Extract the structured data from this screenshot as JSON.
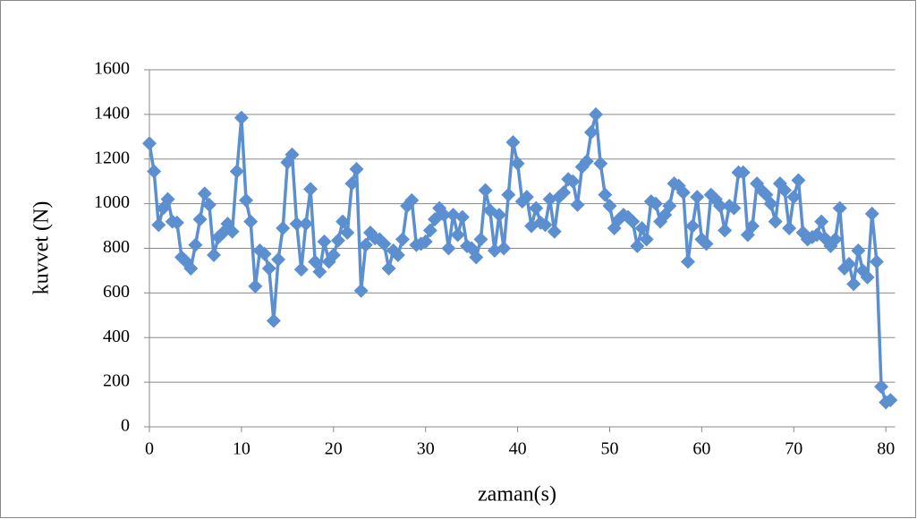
{
  "chart_data": {
    "type": "line",
    "xlabel": "zaman(s)",
    "ylabel": "kuvvet (N)",
    "xlim": [
      0,
      81
    ],
    "xticks": [
      0,
      10,
      20,
      30,
      40,
      50,
      60,
      70,
      80
    ],
    "ylim": [
      0,
      1600
    ],
    "yticks": [
      0,
      200,
      400,
      600,
      800,
      1000,
      1200,
      1400,
      1600
    ],
    "grid": true,
    "series": [
      {
        "color": "#5b8fd0",
        "x": [
          0,
          0.5,
          1,
          1.5,
          2,
          2.5,
          3,
          3.5,
          4,
          4.5,
          5,
          5.5,
          6,
          6.5,
          7,
          7.5,
          8,
          8.5,
          9,
          9.5,
          10,
          10.5,
          11,
          11.5,
          12,
          12.5,
          13,
          13.5,
          14,
          14.5,
          15,
          15.5,
          16,
          16.5,
          17,
          17.5,
          18,
          18.5,
          19,
          19.5,
          20,
          20.5,
          21,
          21.5,
          22,
          22.5,
          23,
          23.5,
          24,
          24.5,
          25,
          25.5,
          26,
          26.5,
          27,
          27.5,
          28,
          28.5,
          29,
          29.5,
          30,
          30.5,
          31,
          31.5,
          32,
          32.5,
          33,
          33.5,
          34,
          34.5,
          35,
          35.5,
          36,
          36.5,
          37,
          37.5,
          38,
          38.5,
          39,
          39.5,
          40,
          40.5,
          41,
          41.5,
          42,
          42.5,
          43,
          43.5,
          44,
          44.5,
          45,
          45.5,
          46,
          46.5,
          47,
          47.5,
          48,
          48.5,
          49,
          49.5,
          50,
          50.5,
          51,
          51.5,
          52,
          52.5,
          53,
          53.5,
          54,
          54.5,
          55,
          55.5,
          56,
          56.5,
          57,
          57.5,
          58,
          58.5,
          59,
          59.5,
          60,
          60.5,
          61,
          61.5,
          62,
          62.5,
          63,
          63.5,
          64,
          64.5,
          65,
          65.5,
          66,
          66.5,
          67,
          67.5,
          68,
          68.5,
          69,
          69.5,
          70,
          70.5,
          71,
          71.5,
          72,
          72.5,
          73,
          73.5,
          74,
          74.5,
          75,
          75.5,
          76,
          76.5,
          77,
          77.5,
          78,
          78.5,
          79,
          79.5,
          80,
          80.5
        ],
        "values": [
          1270,
          1145,
          905,
          980,
          1020,
          920,
          915,
          760,
          740,
          710,
          815,
          930,
          1045,
          995,
          770,
          850,
          870,
          910,
          875,
          1145,
          1385,
          1015,
          920,
          630,
          790,
          775,
          710,
          475,
          750,
          890,
          1185,
          1220,
          910,
          705,
          910,
          1065,
          740,
          695,
          830,
          740,
          770,
          835,
          920,
          870,
          1090,
          1155,
          610,
          815,
          870,
          845,
          840,
          820,
          710,
          790,
          770,
          840,
          990,
          1015,
          815,
          820,
          830,
          880,
          930,
          980,
          950,
          800,
          950,
          860,
          940,
          810,
          800,
          760,
          840,
          1060,
          970,
          790,
          950,
          800,
          1040,
          1275,
          1180,
          1010,
          1030,
          900,
          980,
          915,
          905,
          1020,
          875,
          1030,
          1050,
          1110,
          1100,
          995,
          1165,
          1190,
          1320,
          1400,
          1180,
          1040,
          990,
          890,
          930,
          950,
          940,
          920,
          810,
          890,
          840,
          1010,
          1000,
          920,
          950,
          990,
          1090,
          1080,
          1050,
          740,
          900,
          1030,
          840,
          820,
          1040,
          1020,
          990,
          880,
          990,
          980,
          1140,
          1140,
          860,
          900,
          1090,
          1060,
          1040,
          1000,
          920,
          1090,
          1060,
          890,
          1030,
          1105,
          870,
          840,
          850,
          860,
          920,
          840,
          810,
          840,
          980,
          710,
          730,
          640,
          790,
          700,
          670,
          955,
          740,
          180,
          110,
          120
        ]
      }
    ]
  }
}
